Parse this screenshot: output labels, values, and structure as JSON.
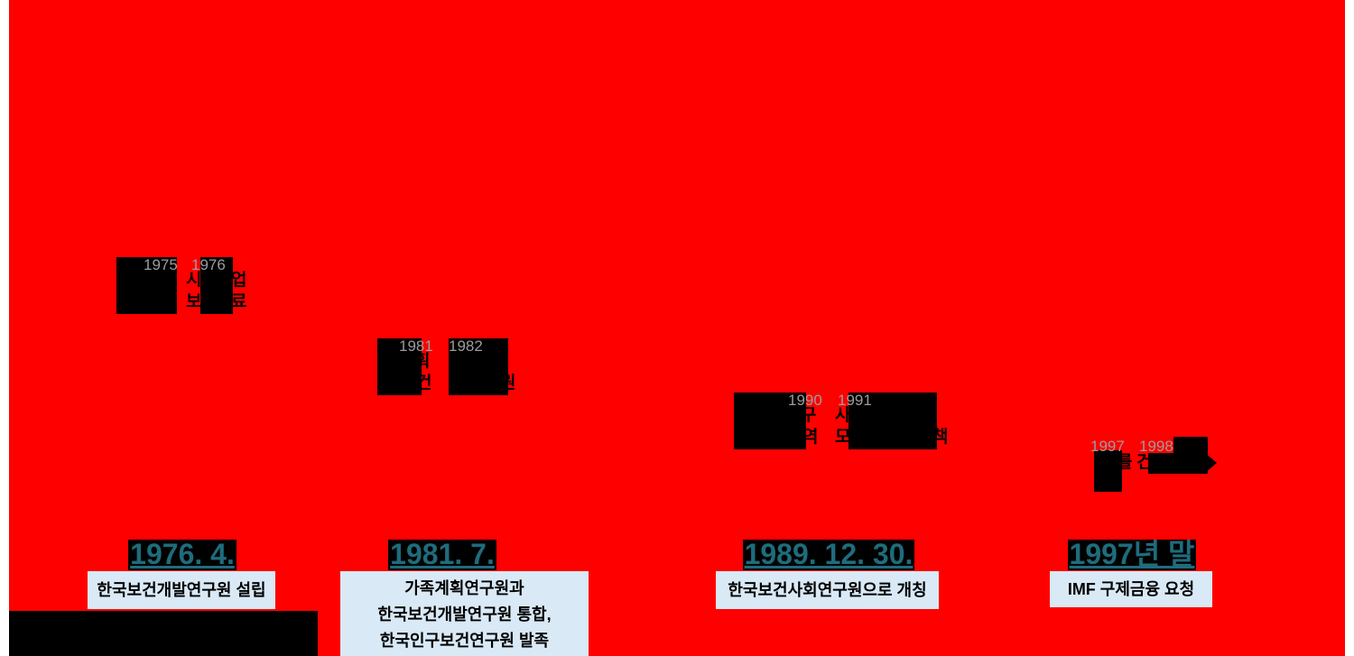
{
  "slide": {
    "background_color": "#FF0000",
    "page_margin_color": "#FFFFFF"
  },
  "colors": {
    "date_text": "#1E6C7C",
    "date_highlight_bg": "#000000",
    "year_caption_text": "#9C9C9C",
    "photo_placeholder": "#000000",
    "label_box_bg": "#D9E9F6",
    "label_box_text": "#000000"
  },
  "icons": {
    "right_arrow": "▶"
  },
  "clusters": [
    {
      "years": [
        "1975",
        "1976"
      ],
      "fragments": [
        "시",
        "업",
        "보",
        "료"
      ]
    },
    {
      "years": [
        "1981",
        "1982"
      ],
      "fragments": [
        "획",
        "건",
        "원"
      ]
    },
    {
      "years": [
        "1990",
        "1991"
      ],
      "fragments": [
        "구",
        "역",
        "사",
        "모",
        "책"
      ]
    },
    {
      "years": [
        "1997",
        "1998"
      ],
      "fragments": [
        "를",
        "건"
      ]
    }
  ],
  "events": [
    {
      "date": "1976. 4.",
      "label_lines": [
        "한국보건개발연구원 설립"
      ]
    },
    {
      "date": "1981. 7.",
      "label_lines": [
        "가족계획연구원과",
        "한국보건개발연구원 통합,",
        "한국인구보건연구원 발족"
      ]
    },
    {
      "date": "1989. 12. 30.",
      "label_lines": [
        "한국보건사회연구원으로 개칭"
      ]
    },
    {
      "date": "1997년 말",
      "label_lines": [
        "IMF 구제금융 요청"
      ]
    }
  ]
}
